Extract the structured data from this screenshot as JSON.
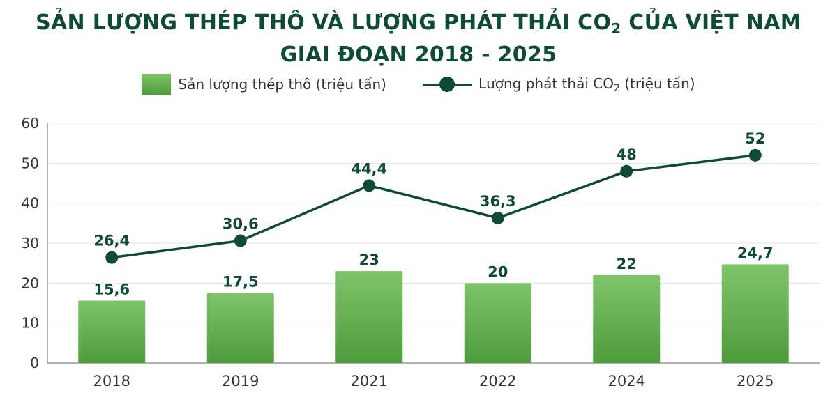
{
  "title": {
    "line1_part1": "SẢN LƯỢNG THÉP THÔ VÀ LƯỢNG PHÁT THẢI CO",
    "line1_sub": "2",
    "line1_part2": " CỦA VIỆT NAM",
    "line2": "GIAI ĐOẠN 2018 - 2025"
  },
  "legend": {
    "bar_label": "Sản lượng thép thô (triệu tấn)",
    "line_label_part1": "Lượng phát thải CO",
    "line_label_sub": "2",
    "line_label_part2": " (triệu tấn)"
  },
  "colors": {
    "bar_top": "#7fc46a",
    "bar_bottom": "#4e9c3c",
    "line": "#0f4a34",
    "label": "#0f4a34",
    "grid": "#e3e3e3",
    "axis_text": "#333333"
  },
  "chart_data": {
    "type": "bar",
    "categories": [
      "2018",
      "2019",
      "2021",
      "2022",
      "2024",
      "2025"
    ],
    "series": [
      {
        "name": "Sản lượng thép thô (triệu tấn)",
        "type": "bar",
        "values": [
          15.6,
          17.5,
          23,
          20,
          22,
          24.7
        ],
        "labels": [
          "15,6",
          "17,5",
          "23",
          "20",
          "22",
          "24,7"
        ]
      },
      {
        "name": "Lượng phát thải CO2 (triệu tấn)",
        "type": "line",
        "values": [
          26.4,
          30.6,
          44.4,
          36.3,
          48,
          52
        ],
        "labels": [
          "26,4",
          "30,6",
          "44,4",
          "36,3",
          "48",
          "52"
        ]
      }
    ],
    "ylim": [
      0,
      60
    ],
    "yticks": [
      0,
      10,
      20,
      30,
      40,
      50,
      60
    ],
    "grid": true,
    "legend_position": "top-center"
  }
}
